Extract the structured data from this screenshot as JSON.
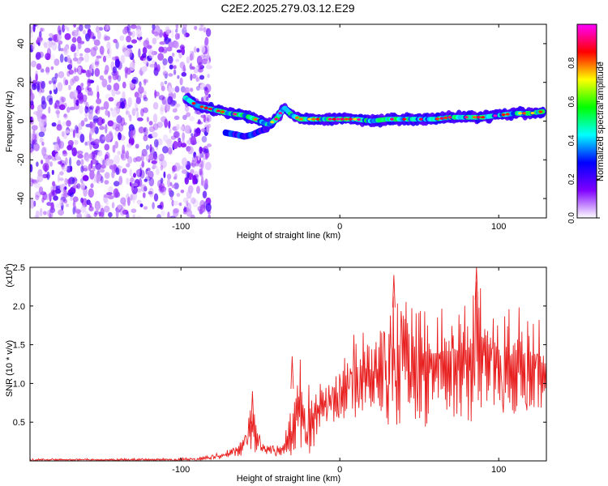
{
  "title": "C2E2.2025.279.03.12.E29",
  "colors": {
    "snr_line": "#e82020",
    "background": "#ffffff",
    "colormap": [
      "#ffffff",
      "#7f00ff",
      "#0000ff",
      "#00ffff",
      "#00ff00",
      "#ffff00",
      "#ff0000",
      "#ff00ff"
    ]
  },
  "chart_data": [
    {
      "type": "heatmap",
      "name": "spectrogram",
      "title": "C2E2.2025.279.03.12.E29",
      "xlabel": "Height of straight line (km)",
      "ylabel": "Frequency (Hz)",
      "xlim": [
        -195,
        130
      ],
      "ylim": [
        -50,
        50
      ],
      "xticks": [
        -100,
        0,
        100
      ],
      "xtick_labels": [
        "-100",
        "0",
        "100"
      ],
      "yticks": [
        -40,
        -20,
        0,
        20,
        40
      ],
      "ytick_labels": [
        "-40",
        "-20",
        "0",
        "20",
        "40"
      ],
      "noise_region_x": [
        -195,
        -88
      ],
      "ridge": {
        "description": "dominant frequency track, height (km) vs frequency (Hz)",
        "x": [
          -97,
          -90,
          -80,
          -70,
          -60,
          -50,
          -45,
          -40,
          -35,
          -30,
          -25,
          -20,
          -10,
          0,
          10,
          20,
          30,
          40,
          50,
          60,
          70,
          80,
          90,
          100,
          110,
          120,
          128
        ],
        "y": [
          12,
          8,
          6,
          4,
          3,
          0,
          -2,
          1,
          7,
          3,
          1,
          1,
          1,
          1,
          1,
          0,
          1,
          1,
          1,
          1,
          2,
          2,
          2,
          3,
          4,
          4,
          5
        ]
      },
      "secondary_track": {
        "x": [
          -72,
          -65,
          -60,
          -55,
          -50,
          -45
        ],
        "y": [
          -6,
          -7,
          -8,
          -7,
          -5,
          -4
        ]
      },
      "colorbar": {
        "label": "Normalized spectral amplitude",
        "range": [
          0.0,
          1.0
        ],
        "ticks": [
          0.0,
          0.2,
          0.4,
          0.6,
          0.8
        ],
        "tick_labels": [
          "0.0",
          "0.2",
          "0.4",
          "0.6",
          "0.8"
        ]
      }
    },
    {
      "type": "line",
      "name": "snr",
      "xlabel": "Height of straight line (km)",
      "ylabel": "SNR (10 * v/v)",
      "y_multiplier": "(x10",
      "y_multiplier_exp": "4",
      "y_multiplier_close": ")",
      "xlim": [
        -195,
        130
      ],
      "ylim": [
        0,
        2.5
      ],
      "xticks": [
        -100,
        0,
        100
      ],
      "xtick_labels": [
        "-100",
        "0",
        "100"
      ],
      "yticks": [
        0.5,
        1.0,
        1.5,
        2.0,
        2.5
      ],
      "ytick_labels": [
        "0.5",
        "1.0",
        "1.5",
        "2.0",
        "2.5"
      ],
      "envelope": {
        "description": "approximate SNR envelope (x10^4) vs height (km)",
        "x": [
          -195,
          -150,
          -100,
          -90,
          -80,
          -70,
          -65,
          -60,
          -58,
          -55,
          -50,
          -45,
          -40,
          -35,
          -30,
          -27,
          -25,
          -22,
          -18,
          -15,
          -10,
          -5,
          0,
          5,
          10,
          20,
          30,
          33,
          40,
          50,
          60,
          70,
          80,
          88,
          90,
          100,
          110,
          120,
          130
        ],
        "low": [
          0.0,
          0.0,
          0.0,
          0.0,
          0.01,
          0.04,
          0.06,
          0.07,
          0.1,
          0.12,
          0.08,
          0.07,
          0.06,
          0.03,
          0.05,
          0.15,
          0.15,
          0.2,
          0.05,
          0.3,
          0.5,
          0.5,
          0.5,
          0.55,
          0.5,
          0.6,
          0.5,
          0.3,
          0.55,
          0.4,
          0.5,
          0.5,
          0.5,
          0.5,
          0.8,
          0.6,
          0.6,
          0.6,
          0.6
        ],
        "high": [
          0.03,
          0.03,
          0.04,
          0.05,
          0.08,
          0.15,
          0.2,
          0.45,
          0.55,
          0.9,
          0.3,
          0.2,
          0.2,
          0.3,
          0.9,
          1.1,
          1.35,
          1.0,
          1.0,
          1.0,
          1.0,
          1.05,
          1.25,
          1.5,
          1.8,
          1.6,
          1.85,
          2.4,
          2.05,
          2.2,
          2.1,
          2.15,
          2.2,
          2.5,
          2.25,
          1.95,
          2.0,
          2.0,
          1.75
        ],
        "peaks": [
          {
            "x": -55,
            "y": 0.9
          },
          {
            "x": -30,
            "y": 1.35
          },
          {
            "x": 34,
            "y": 2.4
          },
          {
            "x": 86,
            "y": 2.5
          }
        ]
      }
    }
  ]
}
